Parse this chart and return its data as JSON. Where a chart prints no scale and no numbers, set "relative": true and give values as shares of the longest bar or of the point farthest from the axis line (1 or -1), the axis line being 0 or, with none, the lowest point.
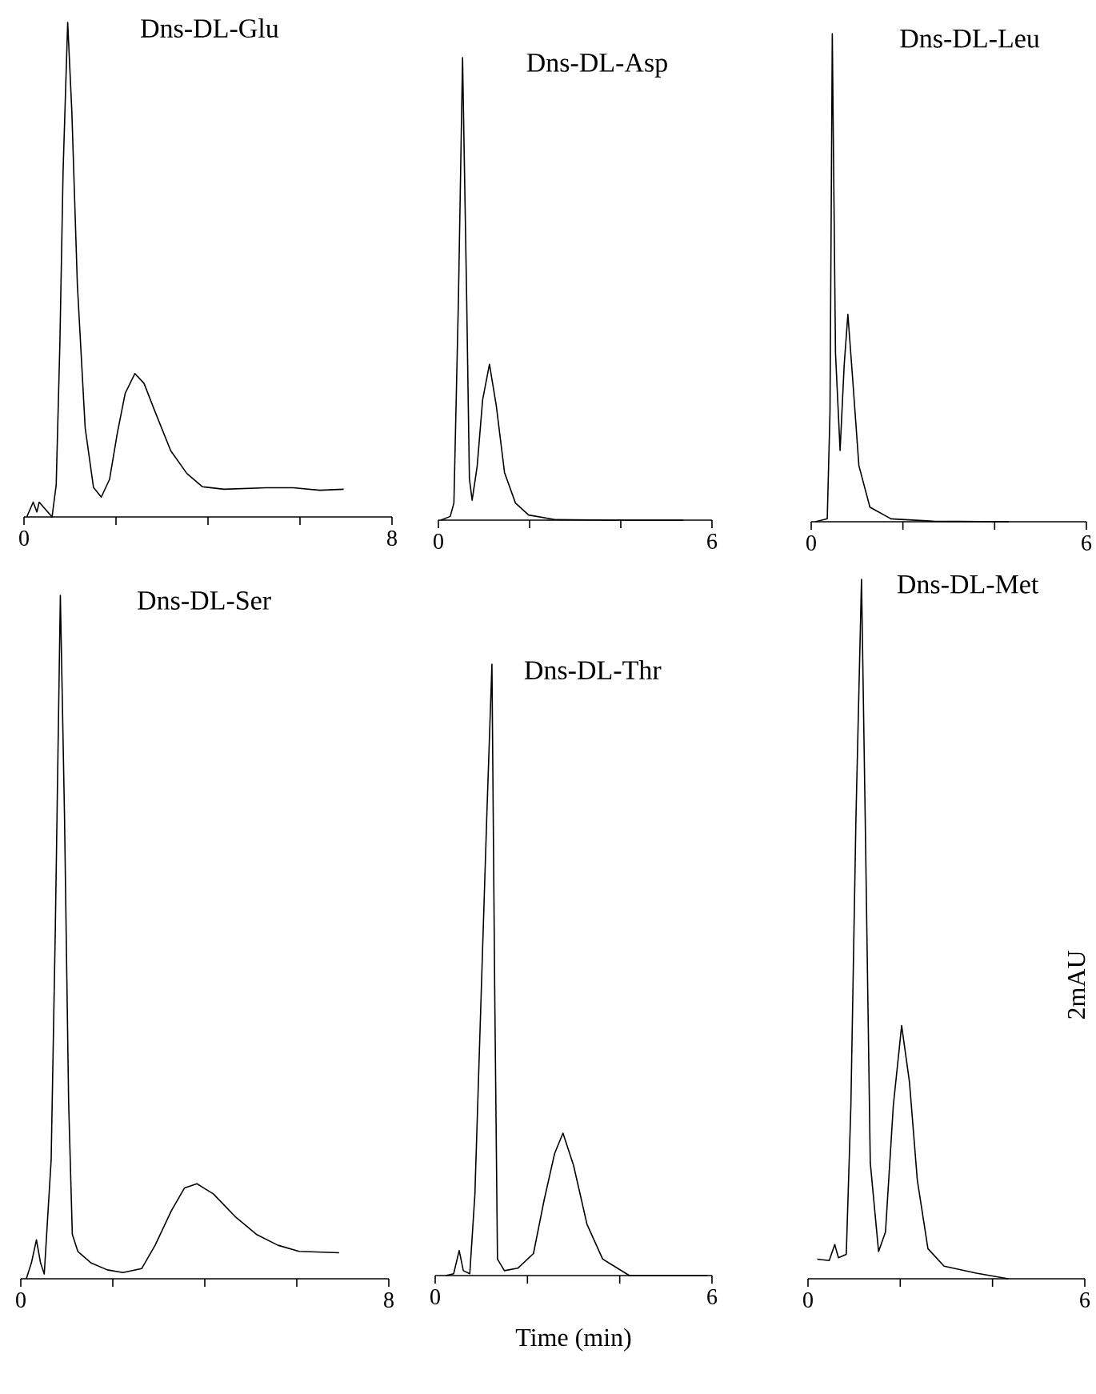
{
  "chart_data": [
    {
      "type": "line",
      "title": "Dns-DL-Glu",
      "relative": true,
      "color": "#000000",
      "marker": "none",
      "xlim": [
        0,
        8
      ],
      "xticks": [
        0,
        {
          "value": 2,
          "label": null
        },
        {
          "value": 4,
          "label": null
        },
        {
          "value": 6,
          "label": null
        },
        8
      ],
      "x": [
        0.06,
        0.2,
        0.28,
        0.33,
        0.61,
        0.7,
        0.78,
        0.85,
        0.95,
        1.04,
        1.16,
        1.33,
        1.51,
        1.68,
        1.86,
        2.03,
        2.2,
        2.41,
        2.61,
        2.84,
        3.19,
        3.54,
        3.88,
        4.35,
        5.27,
        5.85,
        6.43,
        6.95
      ],
      "values": [
        0,
        0.03,
        0.01,
        0.03,
        0,
        0.065,
        0.35,
        0.7,
        1,
        0.82,
        0.47,
        0.18,
        0.06,
        0.04,
        0.076,
        0.17,
        0.25,
        0.29,
        0.27,
        0.215,
        0.134,
        0.088,
        0.061,
        0.056,
        0.059,
        0.059,
        0.054,
        0.056
      ]
    },
    {
      "type": "line",
      "title": "Dns-DL-Asp",
      "relative": true,
      "color": "#000000",
      "marker": "none",
      "xlim": [
        0,
        6
      ],
      "xticks": [
        0,
        {
          "value": 2,
          "label": null
        },
        {
          "value": 4,
          "label": null
        },
        6
      ],
      "x": [
        0.05,
        0.26,
        0.34,
        0.44,
        0.53,
        0.62,
        0.68,
        0.74,
        0.85,
        0.97,
        1.12,
        1.27,
        1.45,
        1.69,
        1.98,
        2.58,
        3.76,
        5.37
      ],
      "values": [
        0,
        0.008,
        0.037,
        0.48,
        1,
        0.48,
        0.09,
        0.043,
        0.116,
        0.26,
        0.337,
        0.247,
        0.103,
        0.037,
        0.011,
        0.001,
        0,
        0
      ]
    },
    {
      "type": "line",
      "title": "Dns-DL-Leu",
      "relative": true,
      "color": "#000000",
      "marker": "none",
      "xlim": [
        0,
        6
      ],
      "xticks": [
        0,
        {
          "value": 2,
          "label": null
        },
        {
          "value": 4,
          "label": null
        },
        6
      ],
      "x": [
        0.09,
        0.35,
        0.41,
        0.46,
        0.53,
        0.63,
        0.72,
        0.8,
        0.9,
        1.04,
        1.28,
        1.74,
        2.67,
        4.31
      ],
      "values": [
        0,
        0.006,
        0.225,
        1,
        0.346,
        0.146,
        0.322,
        0.425,
        0.298,
        0.115,
        0.03,
        0.006,
        0.001,
        0
      ]
    },
    {
      "type": "line",
      "title": "Dns-DL-Ser",
      "relative": true,
      "color": "#000000",
      "marker": "none",
      "xlim": [
        0,
        8
      ],
      "xticks": [
        0,
        {
          "value": 2,
          "label": null
        },
        {
          "value": 4,
          "label": null
        },
        {
          "value": 6,
          "label": null
        },
        8
      ],
      "x": [
        0.12,
        0.23,
        0.34,
        0.43,
        0.51,
        0.66,
        0.75,
        0.86,
        0.95,
        1.04,
        1.12,
        1.24,
        1.53,
        1.88,
        2.22,
        2.63,
        2.92,
        3.27,
        3.56,
        3.83,
        4.19,
        4.66,
        5.12,
        5.59,
        6.05,
        6.92
      ],
      "values": [
        0,
        0.023,
        0.057,
        0.023,
        0.007,
        0.174,
        0.51,
        1,
        0.678,
        0.258,
        0.065,
        0.04,
        0.023,
        0.013,
        0.009,
        0.015,
        0.049,
        0.099,
        0.133,
        0.139,
        0.124,
        0.091,
        0.065,
        0.049,
        0.04,
        0.038
      ]
    },
    {
      "type": "line",
      "title": "Dns-DL-Thr",
      "xlabel": "Time (min)",
      "relative": true,
      "color": "#000000",
      "marker": "none",
      "xlim": [
        0,
        6
      ],
      "xticks": [
        0,
        {
          "value": 2,
          "label": null
        },
        {
          "value": 4,
          "label": null
        },
        6
      ],
      "x": [
        0.23,
        0.4,
        0.52,
        0.61,
        0.75,
        0.86,
        1.0,
        1.12,
        1.23,
        1.29,
        1.35,
        1.5,
        1.79,
        2.13,
        2.36,
        2.59,
        2.77,
        3.0,
        3.29,
        3.63,
        4.21,
        5.25,
        5.9
      ],
      "values": [
        0,
        0.003,
        0.041,
        0.008,
        0.003,
        0.132,
        0.468,
        0.755,
        1,
        0.468,
        0.027,
        0.008,
        0.012,
        0.036,
        0.123,
        0.2,
        0.233,
        0.18,
        0.084,
        0.027,
        0,
        0,
        0
      ]
    },
    {
      "type": "line",
      "title": "Dns-DL-Met",
      "annotations": [
        "2mAU"
      ],
      "relative": true,
      "color": "#000000",
      "marker": "none",
      "xlim": [
        0,
        6
      ],
      "xticks": [
        0,
        {
          "value": 2,
          "label": null
        },
        {
          "value": 4,
          "label": null
        },
        6
      ],
      "x": [
        0.2,
        0.46,
        0.58,
        0.66,
        0.83,
        0.93,
        1.04,
        1.16,
        1.24,
        1.35,
        1.53,
        1.68,
        1.85,
        2.03,
        2.2,
        2.37,
        2.6,
        2.95,
        3.65,
        4.34
      ],
      "values": [
        0.028,
        0.026,
        0.049,
        0.03,
        0.035,
        0.248,
        0.66,
        1,
        0.66,
        0.166,
        0.039,
        0.067,
        0.248,
        0.362,
        0.281,
        0.141,
        0.043,
        0.018,
        0.008,
        0
      ]
    }
  ]
}
